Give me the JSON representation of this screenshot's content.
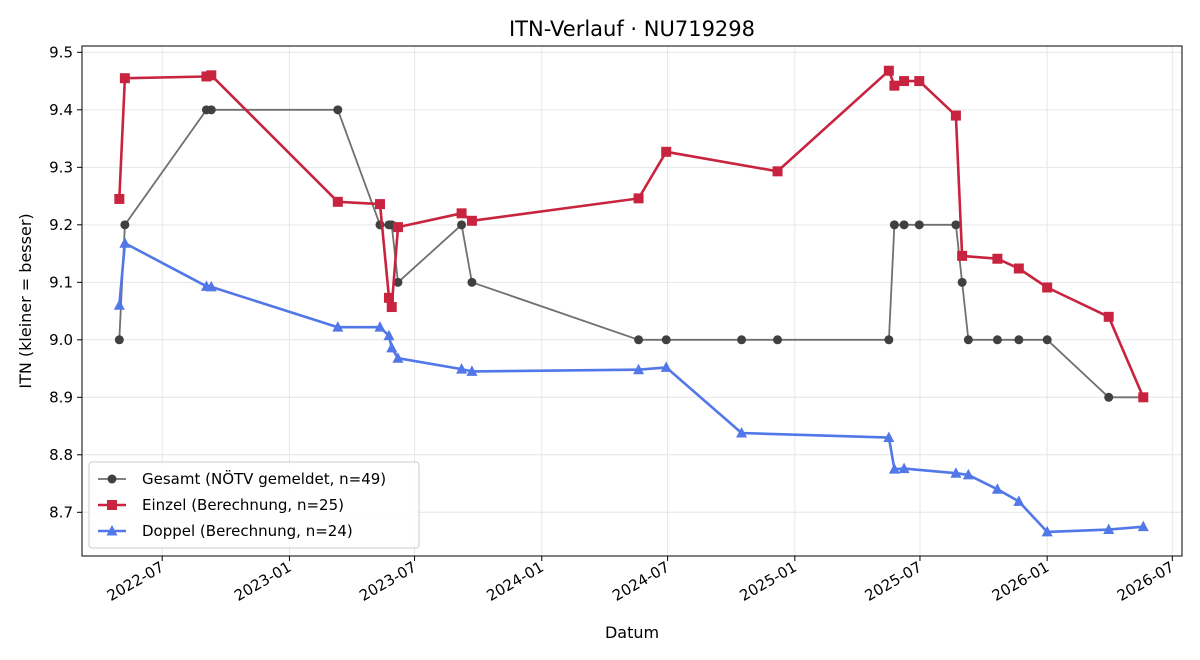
{
  "chart_data": {
    "type": "line",
    "title": "ITN-Verlauf · NU719298",
    "xlabel": "Datum",
    "ylabel": "ITN  (kleiner = besser)",
    "x_ticks": [
      "2022-07",
      "2023-01",
      "2023-07",
      "2024-01",
      "2024-07",
      "2025-01",
      "2025-07",
      "2026-01",
      "2026-07"
    ],
    "y_ticks": [
      "8.7",
      "8.8",
      "8.9",
      "9.0",
      "9.1",
      "9.2",
      "9.3",
      "9.4",
      "9.5"
    ],
    "xlim": [
      "2022-03-07",
      "2026-07-15"
    ],
    "ylim": [
      8.624,
      9.511
    ],
    "grid": true,
    "legend_position": "lower-left",
    "series": [
      {
        "name": "Gesamt (NÖTV gemeldet, n=49)",
        "color": "#707070",
        "marker_color": "#404040",
        "marker": "circle",
        "points": [
          [
            "2022-04-30",
            9.0
          ],
          [
            "2022-05-08",
            9.2
          ],
          [
            "2022-09-03",
            9.4
          ],
          [
            "2022-09-10",
            9.4
          ],
          [
            "2023-03-12",
            9.4
          ],
          [
            "2023-05-12",
            9.2
          ],
          [
            "2023-05-25",
            9.2
          ],
          [
            "2023-05-29",
            9.2
          ],
          [
            "2023-06-07",
            9.1
          ],
          [
            "2023-09-07",
            9.2
          ],
          [
            "2023-09-22",
            9.1
          ],
          [
            "2024-05-20",
            9.0
          ],
          [
            "2024-06-29",
            9.0
          ],
          [
            "2024-10-16",
            9.0
          ],
          [
            "2024-12-07",
            9.0
          ],
          [
            "2025-05-17",
            9.0
          ],
          [
            "2025-05-25",
            9.2
          ],
          [
            "2025-06-08",
            9.2
          ],
          [
            "2025-06-30",
            9.2
          ],
          [
            "2025-08-22",
            9.2
          ],
          [
            "2025-08-31",
            9.1
          ],
          [
            "2025-09-09",
            9.0
          ],
          [
            "2025-10-21",
            9.0
          ],
          [
            "2025-11-21",
            9.0
          ],
          [
            "2026-01-01",
            9.0
          ],
          [
            "2026-03-31",
            8.9
          ],
          [
            "2026-05-20",
            8.9
          ]
        ]
      },
      {
        "name": "Einzel (Berechnung, n=25)",
        "color": "#c8243f",
        "marker_color": "#c8243f",
        "marker": "square",
        "points": [
          [
            "2022-04-30",
            9.245
          ],
          [
            "2022-05-08",
            9.455
          ],
          [
            "2022-09-03",
            9.458
          ],
          [
            "2022-09-10",
            9.46
          ],
          [
            "2023-03-12",
            9.24
          ],
          [
            "2023-05-12",
            9.236
          ],
          [
            "2023-05-25",
            9.073
          ],
          [
            "2023-05-29",
            9.057
          ],
          [
            "2023-06-07",
            9.196
          ],
          [
            "2023-09-07",
            9.22
          ],
          [
            "2023-09-22",
            9.207
          ],
          [
            "2024-05-20",
            9.246
          ],
          [
            "2024-06-29",
            9.327
          ],
          [
            "2024-12-07",
            9.293
          ],
          [
            "2025-05-17",
            9.468
          ],
          [
            "2025-05-25",
            9.442
          ],
          [
            "2025-06-08",
            9.45
          ],
          [
            "2025-06-30",
            9.45
          ],
          [
            "2025-08-22",
            9.39
          ],
          [
            "2025-08-31",
            9.146
          ],
          [
            "2025-10-21",
            9.141
          ],
          [
            "2025-11-21",
            9.124
          ],
          [
            "2026-01-01",
            9.091
          ],
          [
            "2026-03-31",
            9.04
          ],
          [
            "2026-05-20",
            8.9
          ]
        ]
      },
      {
        "name": "Doppel (Berechnung, n=24)",
        "color": "#5277e8",
        "marker_color": "#5277e8",
        "marker": "triangle",
        "points": [
          [
            "2022-04-30",
            9.06
          ],
          [
            "2022-05-08",
            9.168
          ],
          [
            "2022-09-03",
            9.093
          ],
          [
            "2022-09-10",
            9.092
          ],
          [
            "2023-03-12",
            9.022
          ],
          [
            "2023-05-12",
            9.022
          ],
          [
            "2023-05-25",
            9.007
          ],
          [
            "2023-05-29",
            8.986
          ],
          [
            "2023-06-07",
            8.968
          ],
          [
            "2023-09-07",
            8.949
          ],
          [
            "2023-09-22",
            8.945
          ],
          [
            "2024-05-20",
            8.948
          ],
          [
            "2024-06-29",
            8.952
          ],
          [
            "2024-10-16",
            8.838
          ],
          [
            "2025-05-17",
            8.83
          ],
          [
            "2025-05-25",
            8.775
          ],
          [
            "2025-06-08",
            8.776
          ],
          [
            "2025-08-22",
            8.768
          ],
          [
            "2025-09-09",
            8.765
          ],
          [
            "2025-10-21",
            8.74
          ],
          [
            "2025-11-21",
            8.719
          ],
          [
            "2026-01-01",
            8.666
          ],
          [
            "2026-03-31",
            8.67
          ],
          [
            "2026-05-20",
            8.675
          ]
        ]
      }
    ]
  }
}
